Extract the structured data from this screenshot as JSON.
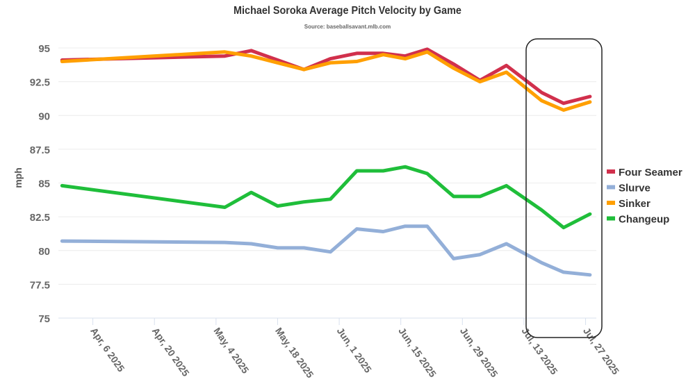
{
  "chart_data": {
    "type": "line",
    "title": "Michael Soroka Average Pitch Velocity by Game",
    "subtitle": "Source: baseballsavant.mlb.com",
    "xlabel": "",
    "ylabel": "mph",
    "ylim": [
      75,
      95
    ],
    "yticks": [
      "75",
      "77.5",
      "80",
      "82.5",
      "85",
      "87.5",
      "90",
      "92.5",
      "95"
    ],
    "xtick_labels": [
      "Apr, 6 2025",
      "Apr, 20 2025",
      "May, 4 2025",
      "May, 18 2025",
      "Jun, 1 2025",
      "Jun, 15 2025",
      "Jun, 29 2025",
      "Jul, 13 2025",
      "Jul, 27 2025"
    ],
    "xtick_dates": [
      "2025-04-06",
      "2025-04-20",
      "2025-05-04",
      "2025-05-18",
      "2025-06-01",
      "2025-06-15",
      "2025-06-29",
      "2025-07-13",
      "2025-07-27"
    ],
    "x": [
      "2025-03-30",
      "2025-05-06",
      "2025-05-12",
      "2025-05-18",
      "2025-05-24",
      "2025-05-30",
      "2025-06-05",
      "2025-06-11",
      "2025-06-16",
      "2025-06-21",
      "2025-06-27",
      "2025-07-03",
      "2025-07-09",
      "2025-07-17",
      "2025-07-22",
      "2025-07-28"
    ],
    "grid": true,
    "legend": "right",
    "series": [
      {
        "name": "Four Seamer",
        "color": "#d1304c",
        "values": [
          94.1,
          94.4,
          94.8,
          94.1,
          93.4,
          94.2,
          94.6,
          94.6,
          94.4,
          94.9,
          93.8,
          92.6,
          93.7,
          91.7,
          90.9,
          91.4
        ]
      },
      {
        "name": "Slurve",
        "color": "#93afd8",
        "values": [
          80.7,
          80.6,
          80.5,
          80.2,
          80.2,
          79.9,
          81.6,
          81.4,
          81.8,
          81.8,
          79.4,
          79.7,
          80.5,
          79.1,
          78.4,
          78.2
        ]
      },
      {
        "name": "Sinker",
        "color": "#ff9f00",
        "values": [
          94.0,
          94.7,
          94.4,
          93.9,
          93.4,
          93.9,
          94.0,
          94.5,
          94.2,
          94.7,
          93.5,
          92.5,
          93.2,
          91.1,
          90.4,
          91.0
        ]
      },
      {
        "name": "Changeup",
        "color": "#1fbe3a",
        "values": [
          84.8,
          83.2,
          84.3,
          83.3,
          83.6,
          83.8,
          85.9,
          85.9,
          86.2,
          85.7,
          84.0,
          84.0,
          84.8,
          83.0,
          81.7,
          82.7
        ]
      }
    ],
    "annotation": "highlight box around Jul 13 – Jul 27 2025"
  }
}
